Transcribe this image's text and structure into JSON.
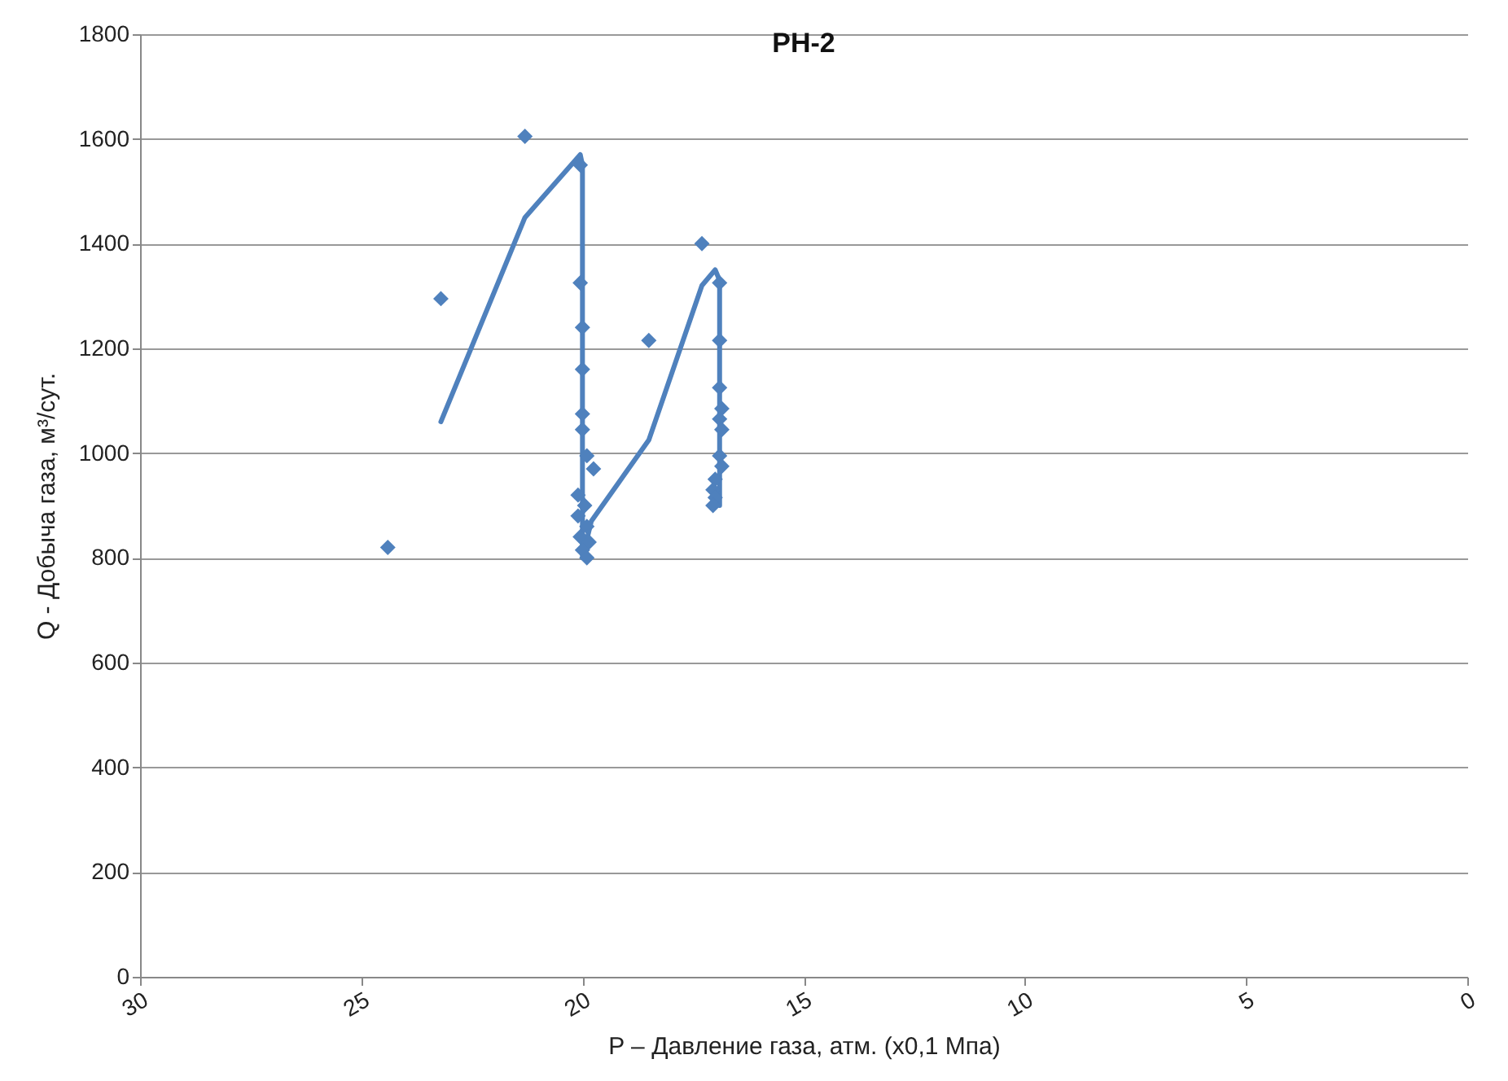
{
  "chart_data": {
    "type": "scatter",
    "title": "РН-2",
    "xlabel": "P – Давление газа, атм. (х0,1 Мпа)",
    "ylabel": "Q - Добыча газа, м³/сут.",
    "xlim": [
      30,
      0
    ],
    "xticks": [
      30,
      25,
      20,
      15,
      10,
      5,
      0
    ],
    "ylim": [
      0,
      1800
    ],
    "yticks": [
      0,
      200,
      400,
      600,
      800,
      1000,
      1200,
      1400,
      1600,
      1800
    ],
    "grid": "y",
    "series": [
      {
        "marker": "diamond",
        "color": "#4f81bd",
        "x": [
          24.4,
          23.2,
          21.3,
          20.05,
          20.05,
          20.0,
          20.0,
          20.0,
          20.0,
          19.9,
          19.75,
          20.1,
          19.95,
          20.1,
          19.9,
          20.05,
          19.85,
          20.0,
          19.9,
          18.5,
          17.3,
          16.9,
          16.9,
          16.9,
          16.85,
          16.9,
          16.85,
          16.9,
          16.85,
          17.0,
          17.05,
          17.0,
          17.05
        ],
        "values": [
          820,
          1295,
          1605,
          1550,
          1325,
          1240,
          1160,
          1075,
          1045,
          995,
          970,
          920,
          900,
          880,
          860,
          840,
          830,
          815,
          800,
          1215,
          1400,
          1325,
          1215,
          1125,
          1085,
          1065,
          1045,
          995,
          975,
          950,
          930,
          915,
          900
        ]
      },
      {
        "type": "line",
        "marker": "none",
        "color": "#4f81bd",
        "x": [
          23.2,
          21.3,
          20.05,
          20.0,
          20.0,
          19.8,
          18.5,
          17.3,
          17.0,
          16.9,
          16.9
        ],
        "values": [
          1060,
          1450,
          1570,
          1550,
          800,
          870,
          1025,
          1320,
          1350,
          1330,
          900
        ]
      }
    ]
  }
}
